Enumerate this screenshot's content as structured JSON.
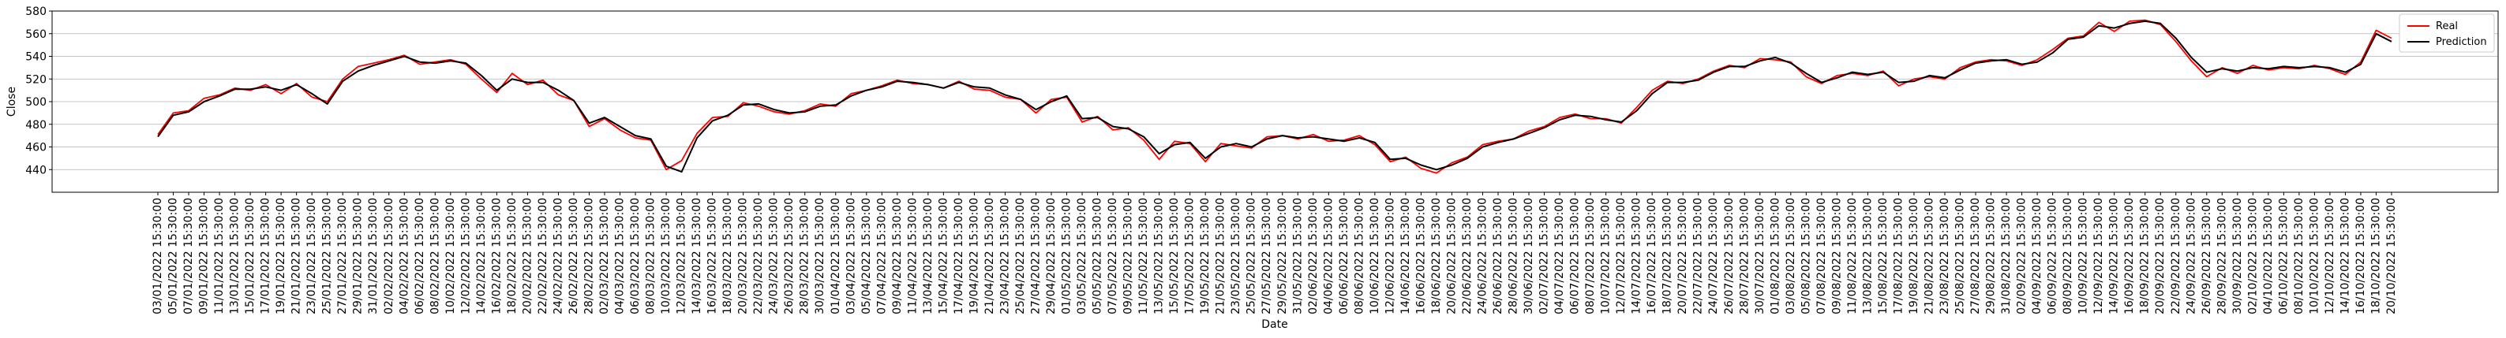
{
  "chart_data": {
    "type": "line",
    "xlabel": "Date",
    "ylabel": "Close",
    "ylim": [
      420,
      580
    ],
    "yticks": [
      440,
      460,
      480,
      500,
      520,
      540,
      560,
      580
    ],
    "grid": "horizontal",
    "legend_position": "top-right",
    "categories": [
      "03/01/2022 15:30:00",
      "05/01/2022 15:30:00",
      "07/01/2022 15:30:00",
      "09/01/2022 15:30:00",
      "11/01/2022 15:30:00",
      "13/01/2022 15:30:00",
      "15/01/2022 15:30:00",
      "17/01/2022 15:30:00",
      "19/01/2022 15:30:00",
      "21/01/2022 15:30:00",
      "23/01/2022 15:30:00",
      "25/01/2022 15:30:00",
      "27/01/2022 15:30:00",
      "29/01/2022 15:30:00",
      "31/01/2022 15:30:00",
      "02/02/2022 15:30:00",
      "04/02/2022 15:30:00",
      "06/02/2022 15:30:00",
      "08/02/2022 15:30:00",
      "10/02/2022 15:30:00",
      "12/02/2022 15:30:00",
      "14/02/2022 15:30:00",
      "16/02/2022 15:30:00",
      "18/02/2022 15:30:00",
      "20/02/2022 15:30:00",
      "22/02/2022 15:30:00",
      "24/02/2022 15:30:00",
      "26/02/2022 15:30:00",
      "28/02/2022 15:30:00",
      "02/03/2022 15:30:00",
      "04/03/2022 15:30:00",
      "06/03/2022 15:30:00",
      "08/03/2022 15:30:00",
      "10/03/2022 15:30:00",
      "12/03/2022 15:30:00",
      "14/03/2022 15:30:00",
      "16/03/2022 15:30:00",
      "18/03/2022 15:30:00",
      "20/03/2022 15:30:00",
      "22/03/2022 15:30:00",
      "24/03/2022 15:30:00",
      "26/03/2022 15:30:00",
      "28/03/2022 15:30:00",
      "30/03/2022 15:30:00",
      "01/04/2022 15:30:00",
      "03/04/2022 15:30:00",
      "05/04/2022 15:30:00",
      "07/04/2022 15:30:00",
      "09/04/2022 15:30:00",
      "11/04/2022 15:30:00",
      "13/04/2022 15:30:00",
      "15/04/2022 15:30:00",
      "17/04/2022 15:30:00",
      "19/04/2022 15:30:00",
      "21/04/2022 15:30:00",
      "23/04/2022 15:30:00",
      "25/04/2022 15:30:00",
      "27/04/2022 15:30:00",
      "29/04/2022 15:30:00",
      "01/05/2022 15:30:00",
      "03/05/2022 15:30:00",
      "05/05/2022 15:30:00",
      "07/05/2022 15:30:00",
      "09/05/2022 15:30:00",
      "11/05/2022 15:30:00",
      "13/05/2022 15:30:00",
      "15/05/2022 15:30:00",
      "17/05/2022 15:30:00",
      "19/05/2022 15:30:00",
      "21/05/2022 15:30:00",
      "23/05/2022 15:30:00",
      "25/05/2022 15:30:00",
      "27/05/2022 15:30:00",
      "29/05/2022 15:30:00",
      "31/05/2022 15:30:00",
      "02/06/2022 15:30:00",
      "04/06/2022 15:30:00",
      "06/06/2022 15:30:00",
      "08/06/2022 15:30:00",
      "10/06/2022 15:30:00",
      "12/06/2022 15:30:00",
      "14/06/2022 15:30:00",
      "16/06/2022 15:30:00",
      "18/06/2022 15:30:00",
      "20/06/2022 15:30:00",
      "22/06/2022 15:30:00",
      "24/06/2022 15:30:00",
      "26/06/2022 15:30:00",
      "28/06/2022 15:30:00",
      "30/06/2022 15:30:00",
      "02/07/2022 15:30:00",
      "04/07/2022 15:30:00",
      "06/07/2022 15:30:00",
      "08/07/2022 15:30:00",
      "10/07/2022 15:30:00",
      "12/07/2022 15:30:00",
      "14/07/2022 15:30:00",
      "16/07/2022 15:30:00",
      "18/07/2022 15:30:00",
      "20/07/2022 15:30:00",
      "22/07/2022 15:30:00",
      "24/07/2022 15:30:00",
      "26/07/2022 15:30:00",
      "28/07/2022 15:30:00",
      "30/07/2022 15:30:00",
      "01/08/2022 15:30:00",
      "03/08/2022 15:30:00",
      "05/08/2022 15:30:00",
      "07/08/2022 15:30:00",
      "09/08/2022 15:30:00",
      "11/08/2022 15:30:00",
      "13/08/2022 15:30:00",
      "15/08/2022 15:30:00",
      "17/08/2022 15:30:00",
      "19/08/2022 15:30:00",
      "21/08/2022 15:30:00",
      "23/08/2022 15:30:00",
      "25/08/2022 15:30:00",
      "27/08/2022 15:30:00",
      "29/08/2022 15:30:00",
      "31/08/2022 15:30:00",
      "02/09/2022 15:30:00",
      "04/09/2022 15:30:00",
      "06/09/2022 15:30:00",
      "08/09/2022 15:30:00",
      "10/09/2022 15:30:00",
      "12/09/2022 15:30:00",
      "14/09/2022 15:30:00",
      "16/09/2022 15:30:00",
      "18/09/2022 15:30:00",
      "20/09/2022 15:30:00",
      "22/09/2022 15:30:00",
      "24/09/2022 15:30:00",
      "26/09/2022 15:30:00",
      "28/09/2022 15:30:00",
      "30/09/2022 15:30:00",
      "02/10/2022 15:30:00",
      "04/10/2022 15:30:00",
      "06/10/2022 15:30:00",
      "08/10/2022 15:30:00",
      "10/10/2022 15:30:00",
      "12/10/2022 15:30:00",
      "14/10/2022 15:30:00",
      "16/10/2022 15:30:00",
      "18/10/2022 15:30:00",
      "20/10/2022 15:30:00"
    ],
    "series": [
      {
        "name": "Real",
        "color": "#ff0000",
        "values": [
          471,
          490,
          492,
          503,
          506,
          512,
          510,
          515,
          507,
          516,
          504,
          500,
          520,
          531,
          534,
          537,
          541,
          533,
          535,
          537,
          533,
          520,
          508,
          525,
          515,
          519,
          506,
          501,
          478,
          485,
          475,
          468,
          466,
          440,
          448,
          472,
          486,
          487,
          499,
          496,
          491,
          489,
          492,
          498,
          496,
          507,
          510,
          514,
          519,
          516,
          515,
          512,
          518,
          511,
          510,
          504,
          502,
          490,
          502,
          504,
          482,
          487,
          475,
          477,
          466,
          449,
          465,
          463,
          447,
          463,
          461,
          459,
          469,
          470,
          467,
          471,
          465,
          466,
          470,
          462,
          447,
          451,
          441,
          437,
          446,
          451,
          462,
          465,
          467,
          474,
          478,
          486,
          489,
          485,
          485,
          481,
          495,
          510,
          518,
          516,
          520,
          527,
          532,
          530,
          538,
          537,
          535,
          522,
          516,
          523,
          525,
          523,
          527,
          514,
          520,
          522,
          520,
          530,
          535,
          537,
          536,
          532,
          537,
          546,
          556,
          558,
          570,
          562,
          571,
          572,
          568,
          553,
          536,
          522,
          530,
          525,
          532,
          528,
          530,
          529,
          532,
          529,
          524,
          535,
          563,
          556
        ]
      },
      {
        "name": "Prediction",
        "color": "#000000",
        "values": [
          469,
          488,
          491,
          500,
          505,
          511,
          511,
          513,
          510,
          515,
          507,
          498,
          518,
          527,
          532,
          536,
          540,
          535,
          534,
          536,
          534,
          523,
          510,
          520,
          517,
          517,
          510,
          501,
          481,
          486,
          478,
          470,
          467,
          443,
          438,
          468,
          483,
          488,
          497,
          498,
          493,
          490,
          491,
          496,
          497,
          505,
          510,
          513,
          518,
          517,
          515,
          512,
          517,
          513,
          512,
          506,
          502,
          493,
          500,
          505,
          485,
          486,
          478,
          476,
          469,
          454,
          462,
          464,
          450,
          460,
          463,
          460,
          467,
          470,
          468,
          469,
          467,
          465,
          468,
          464,
          449,
          450,
          444,
          440,
          444,
          450,
          460,
          464,
          467,
          472,
          477,
          484,
          488,
          487,
          484,
          482,
          492,
          507,
          517,
          517,
          519,
          526,
          531,
          531,
          536,
          539,
          534,
          525,
          517,
          521,
          526,
          524,
          526,
          517,
          518,
          523,
          521,
          528,
          534,
          536,
          537,
          533,
          535,
          543,
          555,
          557,
          567,
          565,
          569,
          571,
          569,
          556,
          539,
          526,
          529,
          527,
          530,
          529,
          531,
          530,
          531,
          530,
          526,
          533,
          560,
          553
        ]
      }
    ]
  }
}
